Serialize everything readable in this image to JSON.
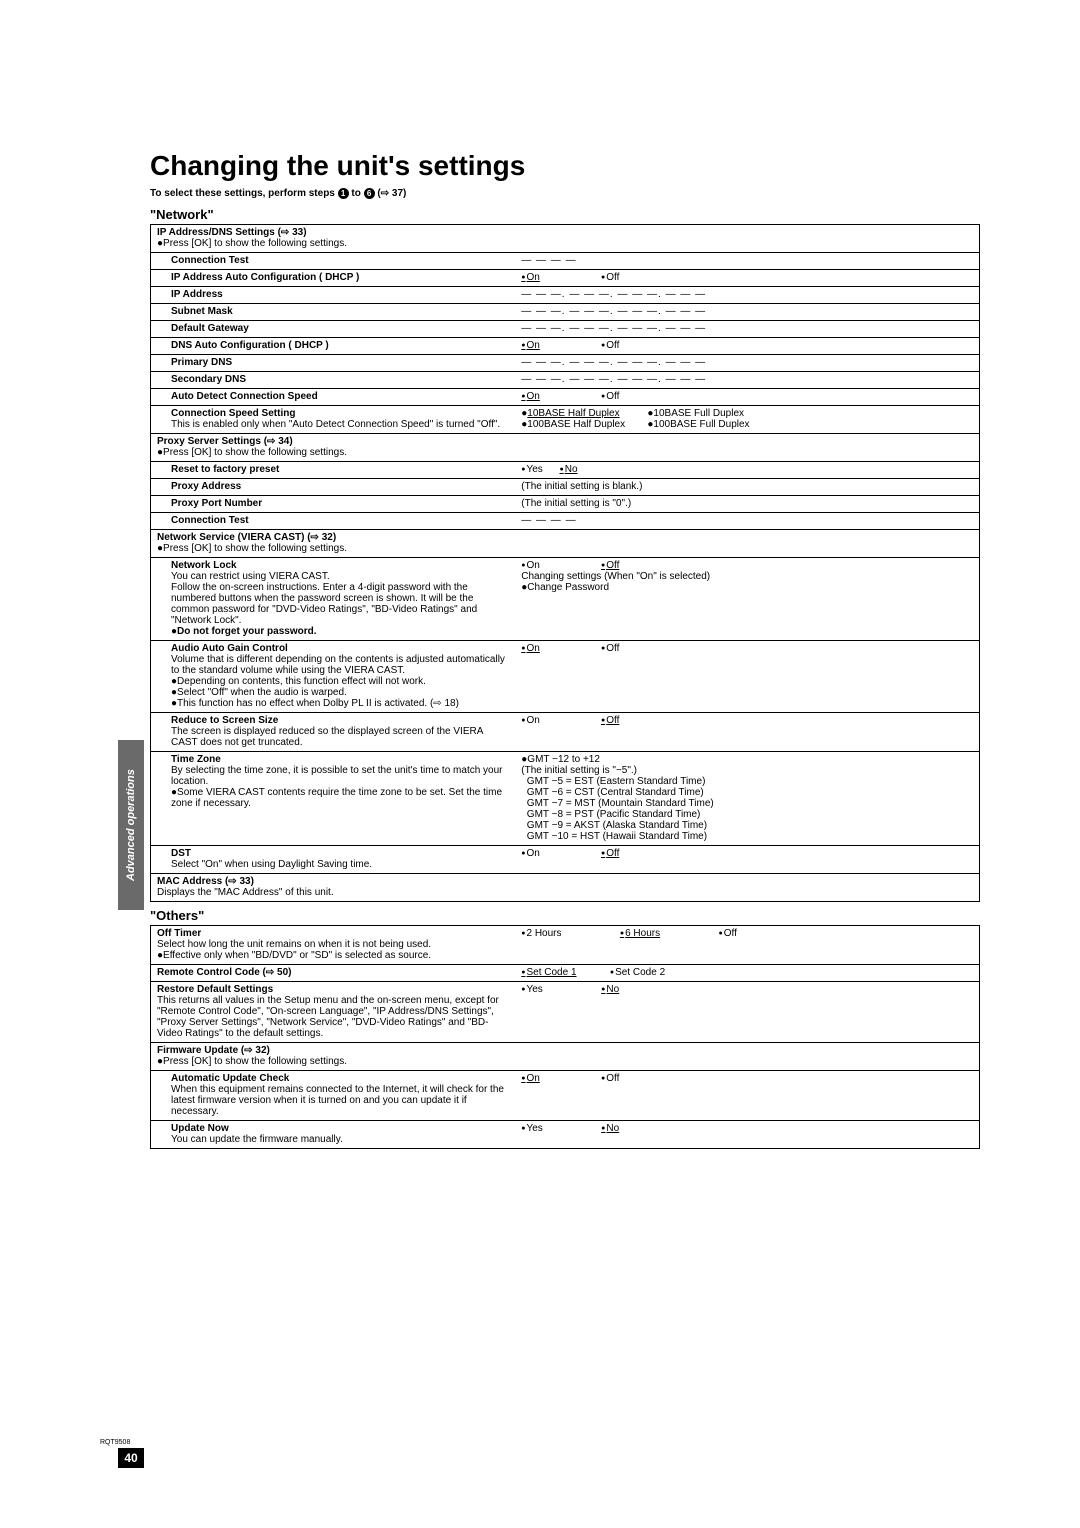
{
  "page": {
    "title": "Changing the unit's settings",
    "subtitle_pre": "To select these settings, perform steps ",
    "subtitle_n1": "1",
    "subtitle_mid": " to ",
    "subtitle_n2": "6",
    "subtitle_post": " (⇨ 37)",
    "side_tab": "Advanced operations",
    "page_number": "40",
    "doc_code": "RQT9508"
  },
  "network": {
    "heading": "\"Network\"",
    "ip_dns_header": "IP Address/DNS Settings (⇨ 33)",
    "ip_dns_desc": "●Press [OK] to show the following settings.",
    "connection_test": "Connection Test",
    "connection_test_val": "— — — —",
    "dhcp": "IP Address Auto Configuration ( DHCP )",
    "dhcp_on": "On",
    "dhcp_off": "Off",
    "ip_address": "IP Address",
    "ip_address_val": "— — —. — — —. — — —. — — —",
    "subnet": "Subnet Mask",
    "subnet_val": "— — —. — — —. — — —. — — —",
    "gateway": "Default Gateway",
    "gateway_val": "— — —. — — —. — — —. — — —",
    "dns_dhcp": "DNS Auto Configuration ( DHCP )",
    "dns_on": "On",
    "dns_off": "Off",
    "primary_dns": "Primary DNS",
    "primary_dns_val": "— — —. — — —. — — —. — — —",
    "secondary_dns": "Secondary DNS",
    "secondary_dns_val": "— — —. — — —. — — —. — — —",
    "auto_speed": "Auto Detect Connection Speed",
    "auto_speed_on": "On",
    "auto_speed_off": "Off",
    "conn_speed": "Connection Speed Setting",
    "conn_speed_desc": "This is enabled only when \"Auto Detect Connection Speed\" is turned \"Off\".",
    "conn_speed_opts": "●10BASE Half Duplex          ●10BASE Full Duplex\n●100BASE Half Duplex        ●100BASE Full Duplex",
    "conn_speed_default": "10BASE Half Duplex",
    "proxy_header": "Proxy Server Settings (⇨ 34)",
    "proxy_desc": "●Press [OK] to show the following settings.",
    "reset": "Reset to factory preset",
    "reset_yes": "Yes",
    "reset_no": "No",
    "proxy_addr": "Proxy Address",
    "proxy_addr_val": "(The initial setting is blank.)",
    "proxy_port": "Proxy Port Number",
    "proxy_port_val": "(The initial setting is \"0\".)",
    "conn_test2": "Connection Test",
    "conn_test2_val": "— — — —",
    "viera_header": "Network Service (VIERA CAST) (⇨ 32)",
    "viera_desc": "●Press [OK] to show the following settings.",
    "netlock": "Network Lock",
    "netlock_desc": "You can restrict using VIERA CAST.\nFollow the on-screen instructions. Enter a 4-digit password with the numbered buttons when the password screen is shown. It will be the common password for \"DVD-Video Ratings\", \"BD-Video Ratings\" and \"Network Lock\".",
    "netlock_bold": "●Do not forget your password.",
    "netlock_on": "On",
    "netlock_off": "Off",
    "netlock_changing": "Changing settings (When \"On\" is selected)",
    "netlock_change_pw": "●Change Password",
    "audio_gain": "Audio Auto Gain Control",
    "audio_gain_desc": "Volume that is different depending on the contents is adjusted automatically to the standard volume while using the VIERA CAST.\n●Depending on contents, this function effect will not work.\n●Select \"Off\" when the audio is warped.\n●This function has no effect when Dolby PL II is activated. (⇨ 18)",
    "audio_on": "On",
    "audio_off": "Off",
    "reduce": "Reduce to Screen Size",
    "reduce_desc": "The screen is displayed reduced so the displayed screen of the VIERA CAST does not get truncated.",
    "reduce_on": "On",
    "reduce_off": "Off",
    "tz": "Time Zone",
    "tz_desc": "By selecting the time zone, it is possible to set the unit's time to match your location.\n●Some VIERA CAST contents require the time zone to be set. Set the time zone if necessary.",
    "tz_range": "●GMT −12 to +12",
    "tz_init": "(The initial setting is \"−5\".)",
    "tz_list": "  GMT −5 = EST (Eastern Standard Time)\n  GMT −6 = CST (Central Standard Time)\n  GMT −7 = MST (Mountain Standard Time)\n  GMT −8 = PST (Pacific Standard Time)\n  GMT −9 = AKST (Alaska Standard Time)\n  GMT −10 = HST (Hawaii Standard Time)",
    "dst": "DST",
    "dst_desc": "Select \"On\" when using Daylight Saving time.",
    "dst_on": "On",
    "dst_off": "Off",
    "mac": "MAC Address (⇨ 33)",
    "mac_desc": "Displays the \"MAC Address\" of this unit."
  },
  "others": {
    "heading": "\"Others\"",
    "off_timer": "Off Timer",
    "off_timer_desc": "Select how long the unit remains on when it is not being used.\n●Effective only when \"BD/DVD\" or \"SD\" is selected as source.",
    "off_2h": "2 Hours",
    "off_6h": "6 Hours",
    "off_off": "Off",
    "remote": "Remote Control Code (⇨ 50)",
    "remote_c1": "Set Code 1",
    "remote_c2": "Set Code 2",
    "restore": "Restore Default Settings",
    "restore_desc": "This returns all values in the Setup menu and the on-screen menu, except for \"Remote Control Code\", \"On-screen Language\", \"IP Address/DNS Settings\", \"Proxy Server Settings\", \"Network Service\", \"DVD-Video Ratings\" and \"BD-Video Ratings\" to the default settings.",
    "restore_yes": "Yes",
    "restore_no": "No",
    "fw_header": "Firmware Update (⇨ 32)",
    "fw_desc": "●Press [OK] to show the following settings.",
    "auto_update": "Automatic Update Check",
    "auto_update_desc": "When this equipment remains connected to the Internet, it will check for the latest firmware version when it is turned on and you can update it if necessary.",
    "auto_on": "On",
    "auto_off": "Off",
    "update_now": "Update Now",
    "update_now_desc": "You can update the firmware manually.",
    "update_yes": "Yes",
    "update_no": "No"
  }
}
